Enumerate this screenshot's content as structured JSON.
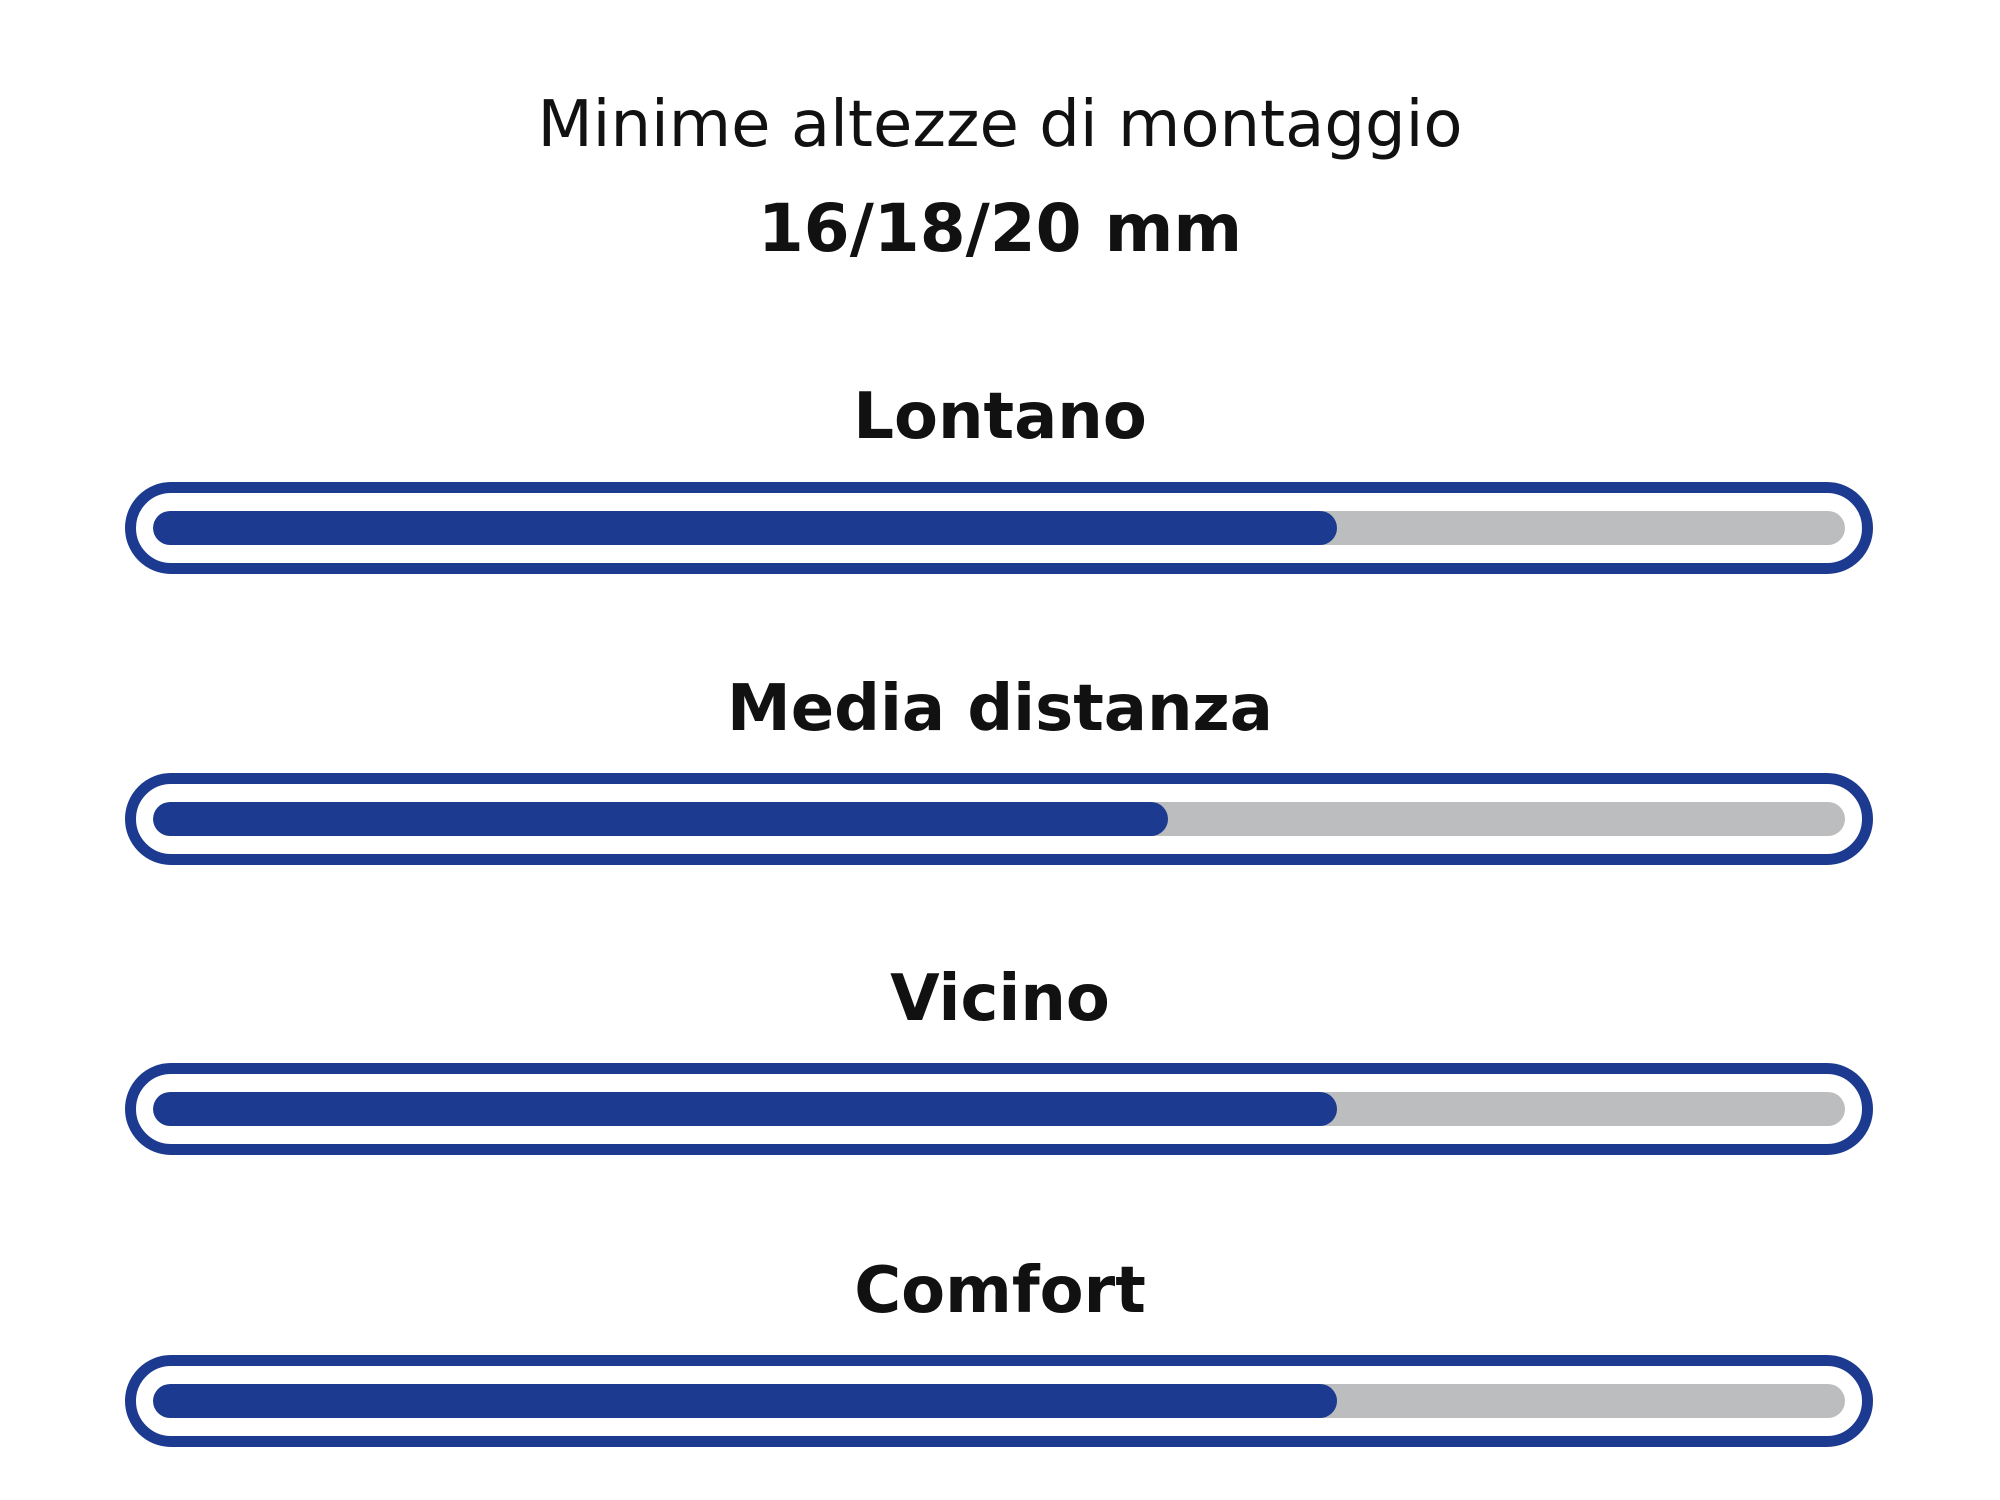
{
  "chart_data": {
    "type": "bar",
    "title": "Minime altezze di montaggio",
    "subtitle": "16/18/20 mm",
    "categories": [
      "Lontano",
      "Media distanza",
      "Vicino",
      "Comfort"
    ],
    "values": [
      70,
      60,
      70,
      70
    ],
    "unit": "percent",
    "ylim": [
      0,
      100
    ],
    "colors": {
      "fill": "#1c3a8f",
      "track": "#bcbdbf",
      "border": "#1c3a8f"
    }
  }
}
